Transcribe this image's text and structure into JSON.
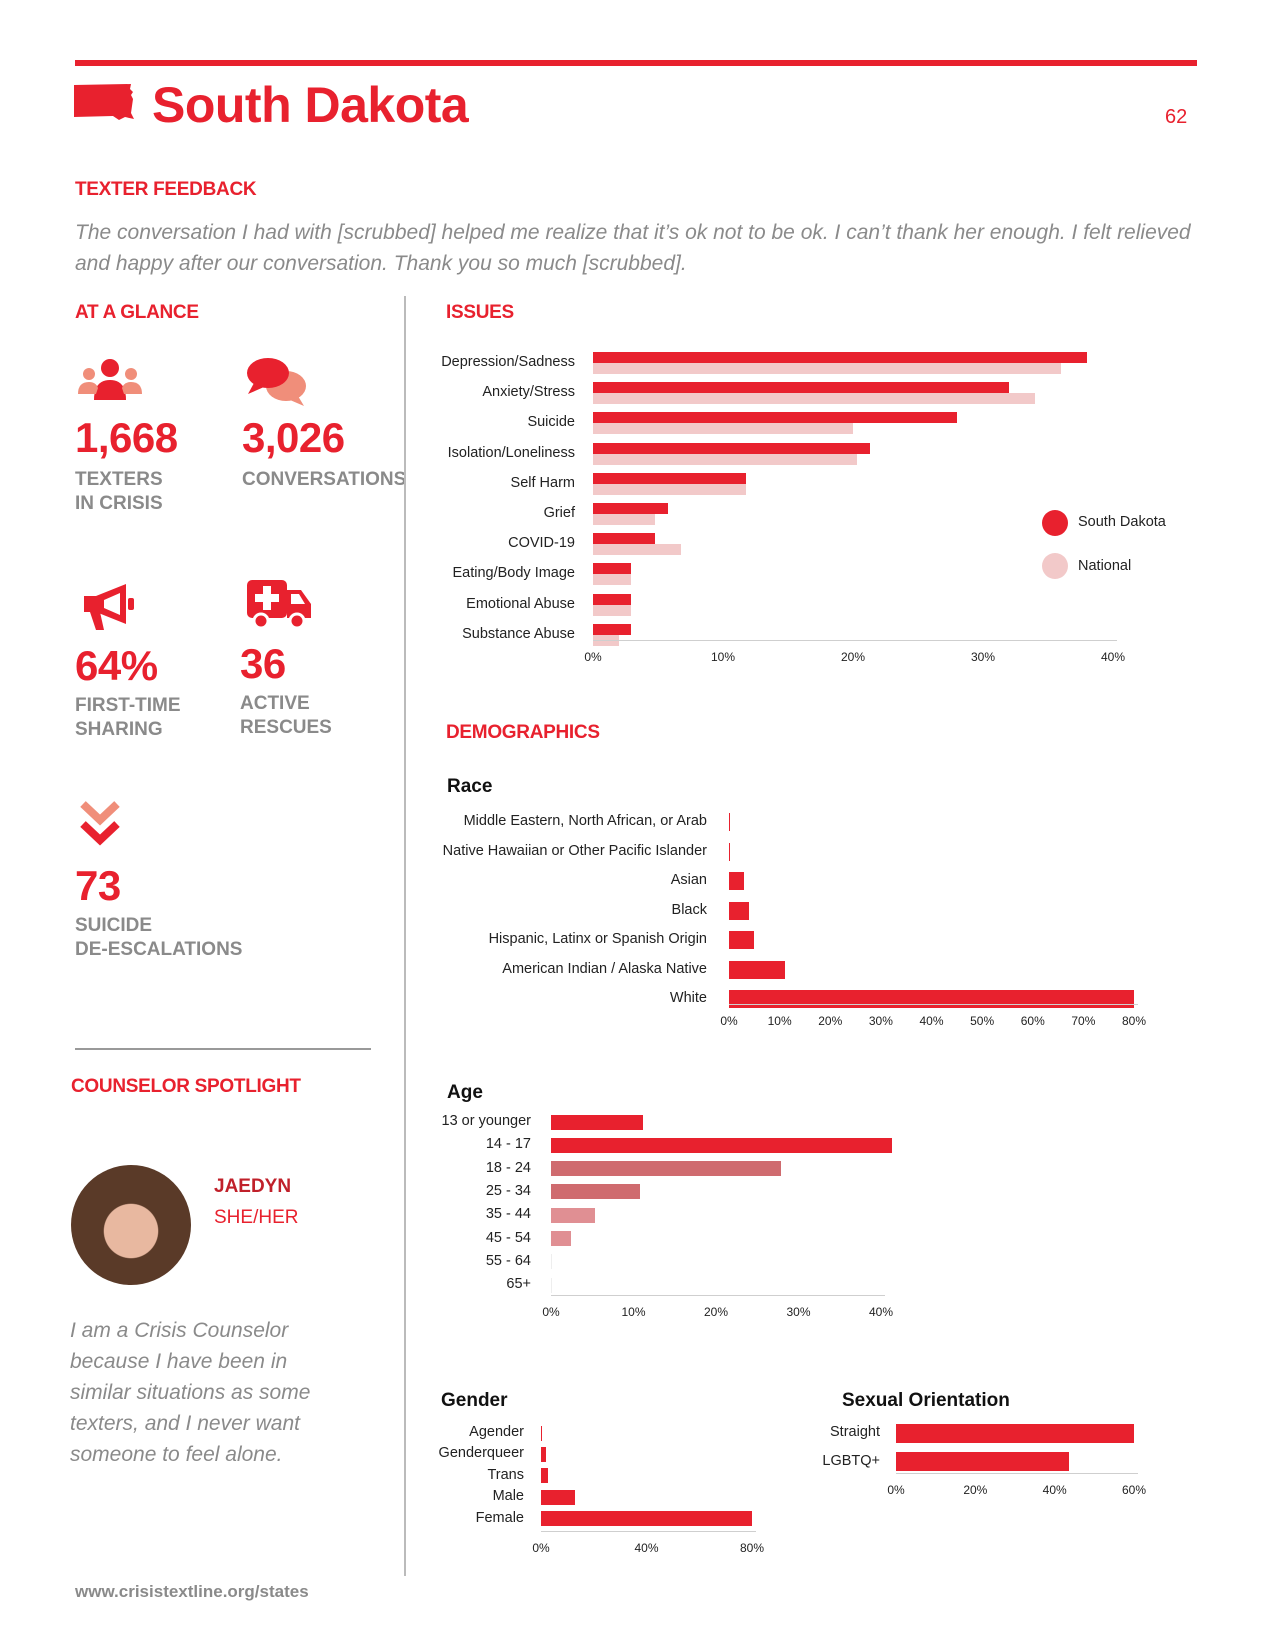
{
  "header": {
    "state": "South Dakota",
    "page": "62"
  },
  "feedback": {
    "heading": "TEXTER FEEDBACK",
    "text": "The conversation I had with [scrubbed] helped me realize that it’s ok not to be ok. I can’t thank her enough. I felt relieved and happy after our conversation. Thank you so much [scrubbed]."
  },
  "glance": {
    "heading": "AT A GLANCE",
    "stats": [
      {
        "icon": "people-icon",
        "value": "1,668",
        "label1": "TEXTERS",
        "label2": "IN CRISIS"
      },
      {
        "icon": "chat-bubbles-icon",
        "value": "3,026",
        "label1": "CONVERSATIONS",
        "label2": ""
      },
      {
        "icon": "megaphone-icon",
        "value": "64%",
        "label1": "FIRST-TIME",
        "label2": "SHARING"
      },
      {
        "icon": "ambulance-icon",
        "value": "36",
        "label1": "ACTIVE",
        "label2": "RESCUES"
      },
      {
        "icon": "double-chevron-down-icon",
        "value": "73",
        "label1": "SUICIDE",
        "label2": "DE-ESCALATIONS"
      }
    ]
  },
  "spotlight": {
    "heading": "COUNSELOR SPOTLIGHT",
    "name": "JAEDYN",
    "pronouns": "SHE/HER",
    "bio": "I am a Crisis Counselor because I have been in similar situations as some texters, and I never want someone to feel alone."
  },
  "issues_heading": "ISSUES",
  "demographics_heading": "DEMOGRAPHICS",
  "footer": "www.crisistextline.org/states",
  "colors": {
    "accent": "#e8212e",
    "national": "#f2c9c9",
    "grey_text": "#8a8a8a"
  },
  "chart_data": [
    {
      "id": "issues",
      "type": "bar",
      "orientation": "horizontal",
      "categories": [
        "Depression/Sadness",
        "Anxiety/Stress",
        "Suicide",
        "Isolation/Loneliness",
        "Self Harm",
        "Grief",
        "COVID-19",
        "Eating/Body Image",
        "Emotional Abuse",
        "Substance Abuse"
      ],
      "series": [
        {
          "name": "South Dakota",
          "color": "#e8212e",
          "values": [
            38,
            32,
            28,
            21.3,
            11.8,
            5.8,
            4.8,
            2.9,
            2.9,
            2.9
          ]
        },
        {
          "name": "National",
          "color": "#f2c9c9",
          "values": [
            36,
            34,
            20,
            20.3,
            11.8,
            4.8,
            6.8,
            2.9,
            2.9,
            2.0
          ]
        }
      ],
      "xlim": [
        0,
        40
      ],
      "ticks": [
        "0%",
        "10%",
        "20%",
        "30%",
        "40%"
      ],
      "legend": "right"
    },
    {
      "id": "race",
      "type": "bar",
      "orientation": "horizontal",
      "title": "Race",
      "categories": [
        "Middle Eastern, North African, or Arab",
        "Native Hawaiian or Other Pacific Islander",
        "Asian",
        "Black",
        "Hispanic, Latinx or Spanish Origin",
        "American Indian / Alaska Native",
        "White"
      ],
      "values": [
        0.2,
        0.2,
        3.0,
        4.0,
        5.0,
        11.0,
        80.0
      ],
      "xlim": [
        0,
        80
      ],
      "ticks": [
        "0%",
        "10%",
        "20%",
        "30%",
        "40%",
        "50%",
        "60%",
        "70%",
        "80%"
      ]
    },
    {
      "id": "age",
      "type": "bar",
      "orientation": "horizontal",
      "title": "Age",
      "categories": [
        "13 or younger",
        "14 - 17",
        "18 - 24",
        "25 - 34",
        "35 - 44",
        "45 - 54",
        "55 - 64",
        "65+"
      ],
      "values": [
        12.3,
        45.5,
        30.7,
        11.8,
        5.8,
        2.6,
        0.1,
        0.1
      ],
      "colors": [
        "#e8212e",
        "#e8212e",
        "#cf6b6f",
        "#cf6b6f",
        "#e08f93",
        "#e08f93",
        "#eeeeee",
        "#eeeeee"
      ],
      "xlim": [
        0,
        44
      ],
      "ticks": [
        "0%",
        "10%",
        "20%",
        "30%",
        "40%"
      ]
    },
    {
      "id": "gender",
      "type": "bar",
      "orientation": "horizontal",
      "title": "Gender",
      "categories": [
        "Agender",
        "Genderqueer",
        "Trans",
        "Male",
        "Female"
      ],
      "values": [
        0.3,
        2.0,
        2.5,
        13.0,
        80.0
      ],
      "xlim": [
        0,
        80
      ],
      "ticks": [
        "0%",
        "40%",
        "80%"
      ]
    },
    {
      "id": "orientation",
      "type": "bar",
      "orientation": "horizontal",
      "title": "Sexual Orientation",
      "categories": [
        "Straight",
        "LGBTQ+"
      ],
      "values": [
        60.0,
        43.5
      ],
      "xlim": [
        0,
        60
      ],
      "ticks": [
        "0%",
        "20%",
        "40%",
        "60%"
      ]
    }
  ]
}
